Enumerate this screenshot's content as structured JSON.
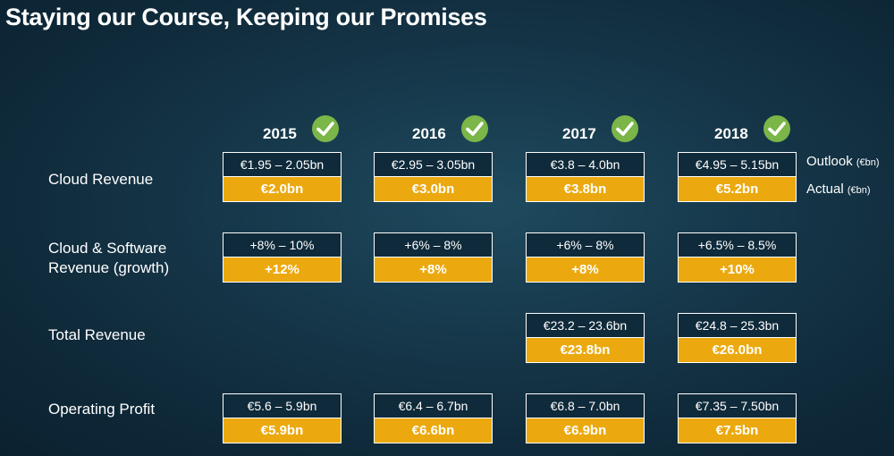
{
  "title": "Staying our Course, Keeping our Promises",
  "years": [
    "2015",
    "2016",
    "2017",
    "2018"
  ],
  "legend": {
    "outlook": "Outlook",
    "actual": "Actual",
    "unit": "(€bn)"
  },
  "rows": [
    {
      "label_line1": "Cloud Revenue",
      "label_line2": "",
      "cells": [
        {
          "outlook": "€1.95 – 2.05bn",
          "actual": "€2.0bn"
        },
        {
          "outlook": "€2.95 – 3.05bn",
          "actual": "€3.0bn"
        },
        {
          "outlook": "€3.8 – 4.0bn",
          "actual": "€3.8bn"
        },
        {
          "outlook": "€4.95 – 5.15bn",
          "actual": "€5.2bn"
        }
      ]
    },
    {
      "label_line1": "Cloud & Software",
      "label_line2": "Revenue (growth)",
      "cells": [
        {
          "outlook": "+8% – 10%",
          "actual": "+12%"
        },
        {
          "outlook": "+6% – 8%",
          "actual": "+8%"
        },
        {
          "outlook": "+6% – 8%",
          "actual": "+8%"
        },
        {
          "outlook": "+6.5% – 8.5%",
          "actual": "+10%"
        }
      ]
    },
    {
      "label_line1": "Total Revenue",
      "label_line2": "",
      "cells": [
        null,
        null,
        {
          "outlook": "€23.2 – 23.6bn",
          "actual": "€23.8bn"
        },
        {
          "outlook": "€24.8 – 25.3bn",
          "actual": "€26.0bn"
        }
      ]
    },
    {
      "label_line1": "Operating Profit",
      "label_line2": "",
      "cells": [
        {
          "outlook": "€5.6 – 5.9bn",
          "actual": "€5.9bn"
        },
        {
          "outlook": "€6.4 – 6.7bn",
          "actual": "€6.6bn"
        },
        {
          "outlook": "€6.8 – 7.0bn",
          "actual": "€6.9bn"
        },
        {
          "outlook": "€7.35 – 7.50bn",
          "actual": "€7.5bn"
        }
      ]
    }
  ],
  "colors": {
    "actual_fill": "#eba90f",
    "check_green": "#7ab648",
    "background": "#17394c"
  },
  "icons": {
    "check": "check-circle-icon"
  }
}
